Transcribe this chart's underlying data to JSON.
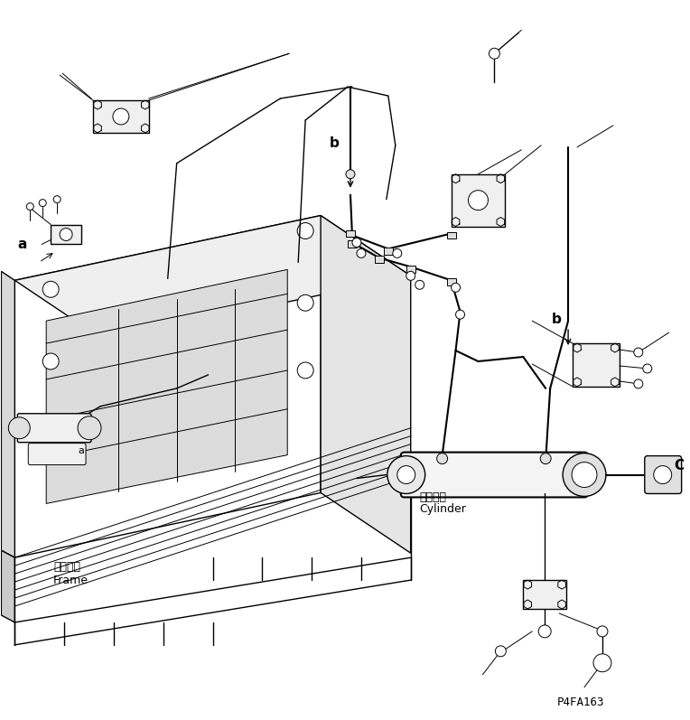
{
  "bg_color": "#ffffff",
  "line_color": "#000000",
  "text_color": "#000000",
  "fig_width": 7.64,
  "fig_height": 7.97,
  "dpi": 100,
  "part_number": "P4FA163",
  "label_frame_jp": "フレーム",
  "label_frame_en": "Frame",
  "label_cylinder_jp": "シリンダ",
  "label_cylinder_en": "Cylinder",
  "label_a": "a",
  "label_b": "b",
  "label_c": "C"
}
